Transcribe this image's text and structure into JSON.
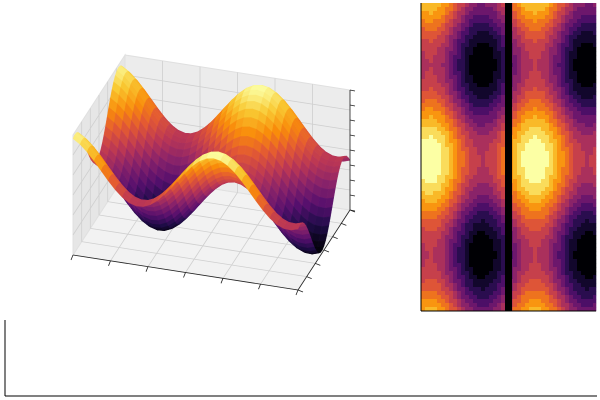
{
  "chart_data": [
    {
      "type": "surface",
      "colormap": "inferno"
    },
    {
      "type": "contour",
      "colormap": "inferno"
    },
    {
      "type": "empty"
    }
  ]
}
